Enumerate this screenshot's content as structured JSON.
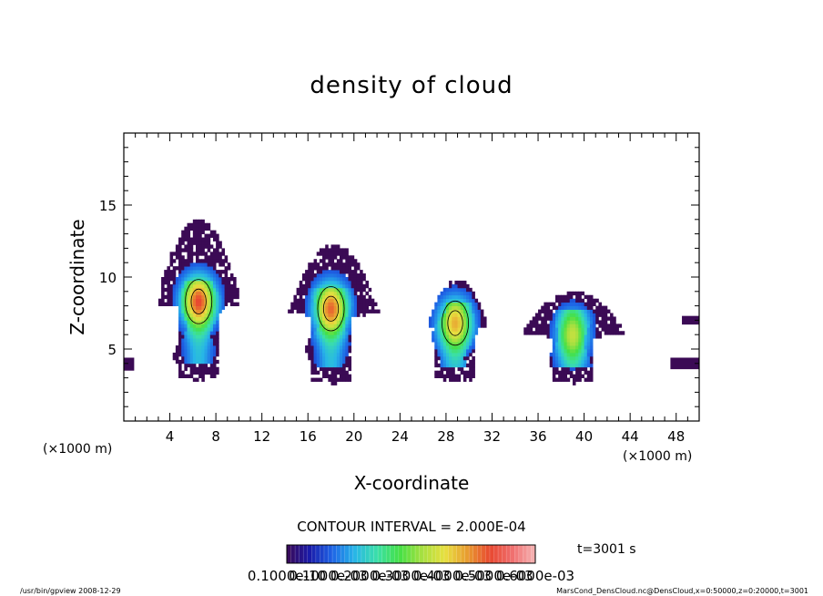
{
  "chart_data": {
    "type": "heatmap",
    "title": "density of cloud",
    "xlabel": "X-coordinate",
    "ylabel": "Z-coordinate",
    "x_units": "(×1000 m)",
    "x_units_bottom_right": "(×1000 m)",
    "x_units_left": "(×1000 m)",
    "xlim": [
      0,
      50
    ],
    "ylim": [
      0,
      20
    ],
    "x_ticks": [
      4,
      8,
      12,
      16,
      20,
      24,
      28,
      32,
      36,
      40,
      44,
      48
    ],
    "y_ticks": [
      5,
      10,
      15
    ],
    "x_minor_step": 1,
    "y_minor_step": 1,
    "contour_interval": "CONTOUR INTERVAL = 2.000E-04",
    "time_label": "t=3001 s",
    "colorbar": {
      "min": 0.0001,
      "max": 0.0006,
      "tick_labels": [
        "0.1000e-10",
        "0.1000e-03",
        "0.2000e-03",
        "0.3000e-03",
        "0.4000e-03",
        "0.5000e-03",
        "0.6000e-03"
      ],
      "colors": [
        "#3b0a55",
        "#1a1aa8",
        "#1e63e6",
        "#27b5e8",
        "#3be0a8",
        "#45e045",
        "#a8e040",
        "#e8e040",
        "#e89b30",
        "#e84830",
        "#f07070",
        "#f5b5b5"
      ]
    },
    "clouds": [
      {
        "cx": 6.5,
        "base": 4.0,
        "top": 14.0,
        "anvil_left": 2.5,
        "anvil_right": 10.5,
        "anvil_z": 8.8,
        "core_z": 8.3,
        "intensity": 0.45
      },
      {
        "cx": 18.0,
        "base": 3.8,
        "top": 12.3,
        "anvil_left": 14.0,
        "anvil_right": 22.5,
        "anvil_z": 8.2,
        "core_z": 7.8,
        "intensity": 0.42
      },
      {
        "cx": 28.8,
        "base": 3.8,
        "top": 9.8,
        "anvil_left": 26.0,
        "anvil_right": 32.0,
        "anvil_z": 7.3,
        "core_z": 6.8,
        "intensity": 0.35
      },
      {
        "cx": 39.0,
        "base": 3.8,
        "top": 9.0,
        "anvil_left": 34.0,
        "anvil_right": 44.2,
        "anvil_z": 6.8,
        "core_z": 6.0,
        "intensity": 0.25
      }
    ],
    "edge_patches": [
      {
        "x0": 0,
        "x1": 0.9,
        "z0": 3.5,
        "z1": 4.4
      },
      {
        "x0": 47.5,
        "x1": 50,
        "z0": 3.6,
        "z1": 4.4
      },
      {
        "x0": 48.5,
        "x1": 50,
        "z0": 6.7,
        "z1": 7.3
      }
    ]
  },
  "footer": {
    "left": "/usr/bin/gpview  2008-12-29",
    "right": "MarsCond_DensCloud.nc@DensCloud,x=0:50000,z=0:20000,t=3001"
  }
}
